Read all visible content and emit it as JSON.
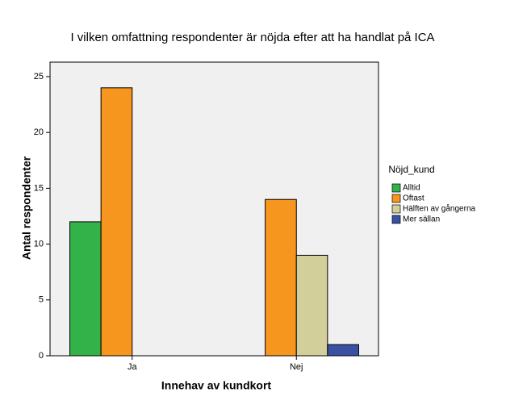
{
  "chart_data": {
    "type": "bar",
    "title": "I vilken omfattning respondenter är nöjda efter att ha handlat på ICA",
    "x_label": "Innehav av kundkort",
    "y_label": "Antal respondenter",
    "legend_title": "Nöjd_kund",
    "categories": [
      "Ja",
      "Nej"
    ],
    "series": [
      {
        "name": "Alltid",
        "color": "#33b24a",
        "values": [
          12,
          null
        ]
      },
      {
        "name": "Oftast",
        "color": "#f7961e",
        "values": [
          24,
          14
        ]
      },
      {
        "name": "Hälften av gångerna",
        "color": "#d3cf9a",
        "values": [
          null,
          9
        ]
      },
      {
        "name": "Mer sällan",
        "color": "#3a51a3",
        "values": [
          null,
          1
        ]
      }
    ],
    "ylim": [
      0,
      26.3
    ],
    "yticks": [
      0,
      5,
      10,
      15,
      20,
      25
    ],
    "legend": "right"
  }
}
